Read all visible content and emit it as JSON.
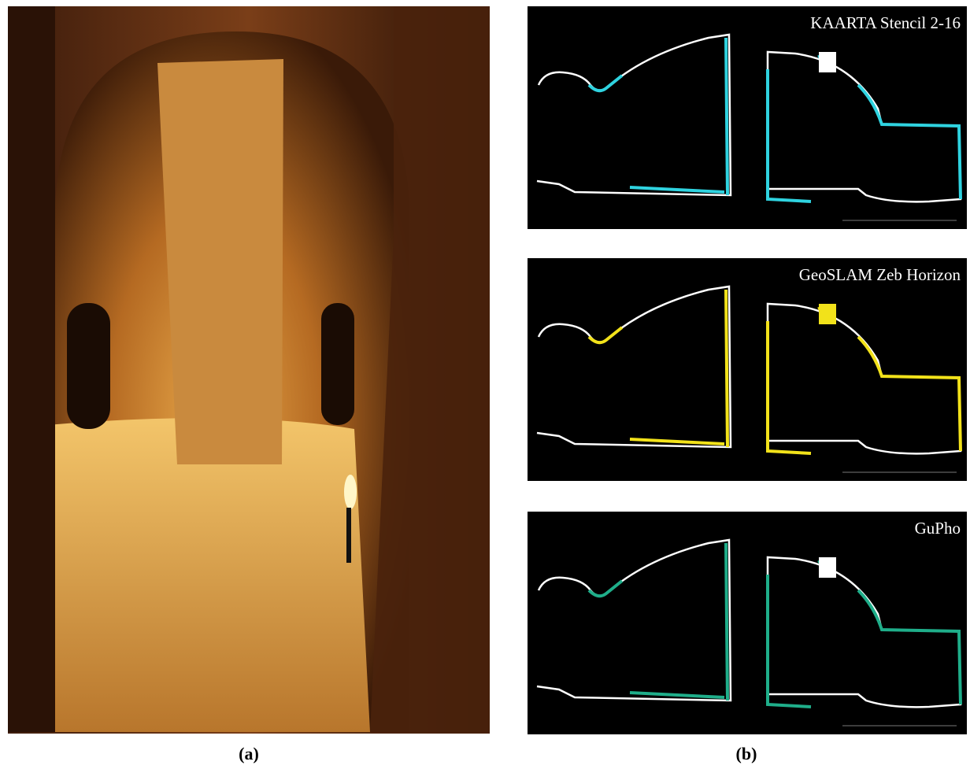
{
  "panel_a": {
    "label": "(a)"
  },
  "panel_b": {
    "label": "(b)",
    "sections": [
      {
        "title": "KAARTA Stencil 2-16",
        "color": "#2fd3e0"
      },
      {
        "title": "GeoSLAM Zeb Horizon",
        "color": "#f2e21a"
      },
      {
        "title": "GuPho",
        "color": "#1fae8a"
      }
    ]
  }
}
